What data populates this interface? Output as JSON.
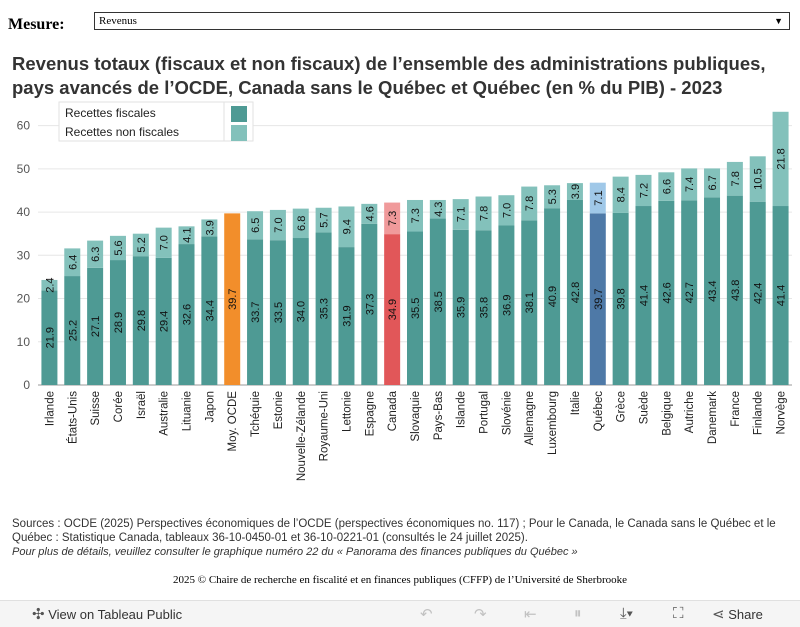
{
  "measure": {
    "label": "Mesure:",
    "selected": "Revenus"
  },
  "title": "Revenus totaux (fiscaux et non fiscaux) de l’ensemble des administrations publiques, pays avancés de l’OCDE, Canada sans le Québec et Québec (en % du PIB)  -  2023",
  "chart_data": {
    "type": "bar",
    "stacked": true,
    "categories": [
      "Irlande",
      "États-Unis",
      "Suisse",
      "Corée",
      "Israël",
      "Australie",
      "Lituanie",
      "Japon",
      "Moy. OCDE",
      "Tchéquie",
      "Estonie",
      "Nouvelle-Zélande",
      "Royaume-Uni",
      "Lettonie",
      "Espagne",
      "Canada",
      "Slovaquie",
      "Pays-Bas",
      "Islande",
      "Portugal",
      "Slovénie",
      "Allemagne",
      "Luxembourg",
      "Italie",
      "Québec",
      "Grèce",
      "Suède",
      "Belgique",
      "Autriche",
      "Danemark",
      "France",
      "Finlande",
      "Norvège"
    ],
    "series": [
      {
        "name": "Recettes fiscales",
        "values": [
          21.9,
          25.2,
          27.1,
          28.9,
          29.8,
          29.4,
          32.6,
          34.4,
          39.7,
          33.7,
          33.5,
          34.0,
          35.3,
          31.9,
          37.3,
          34.9,
          35.5,
          38.5,
          35.9,
          35.8,
          36.9,
          38.1,
          40.9,
          42.8,
          39.7,
          39.8,
          41.4,
          42.6,
          42.7,
          43.4,
          43.8,
          42.4,
          41.4
        ]
      },
      {
        "name": "Recettes non fiscales",
        "values": [
          2.4,
          6.4,
          6.3,
          5.6,
          5.2,
          7.0,
          4.1,
          3.9,
          null,
          6.5,
          7.0,
          6.8,
          5.7,
          9.4,
          4.6,
          7.3,
          7.3,
          4.3,
          7.1,
          7.8,
          7.0,
          7.8,
          5.3,
          3.9,
          7.1,
          8.4,
          7.2,
          6.6,
          7.4,
          6.7,
          7.8,
          10.5,
          21.8
        ]
      }
    ],
    "highlight": {
      "Moy. OCDE": "#f28e2b",
      "Canada": "#e15759",
      "Québec": "#4e79a7"
    },
    "colors": {
      "fiscal": "#4e9a94",
      "non_fiscal": "#83c1bb",
      "canada_non_fiscal": "#f09a9b",
      "quebec_non_fiscal": "#a0c8e8"
    },
    "ylim": [
      0,
      65
    ],
    "yticks": [
      "0",
      "10",
      "20",
      "30",
      "40",
      "50",
      "60"
    ],
    "grid": true,
    "legend_position": "top-left"
  },
  "sources": {
    "text": "Sources : OCDE (2025) Perspectives économiques de l’OCDE (perspectives économiques no. 117) ; Pour le Canada, le Canada sans le Québec et le Québec : Statistique Canada, tableaux 36-10-0450-01 et 36-10-0221-01 (consultés le 24 juillet 2025).",
    "detail": "Pour plus de détails, veuillez consulter le graphique numéro 22 du « Panorama des finances publiques du Québec »"
  },
  "copyright": "2025 © Chaire de recherche en fiscalité et en finances publiques (CFFP) de l’Université de Sherbrooke",
  "toolbar": {
    "view_label": "View on Tableau Public",
    "share_label": "Share"
  }
}
